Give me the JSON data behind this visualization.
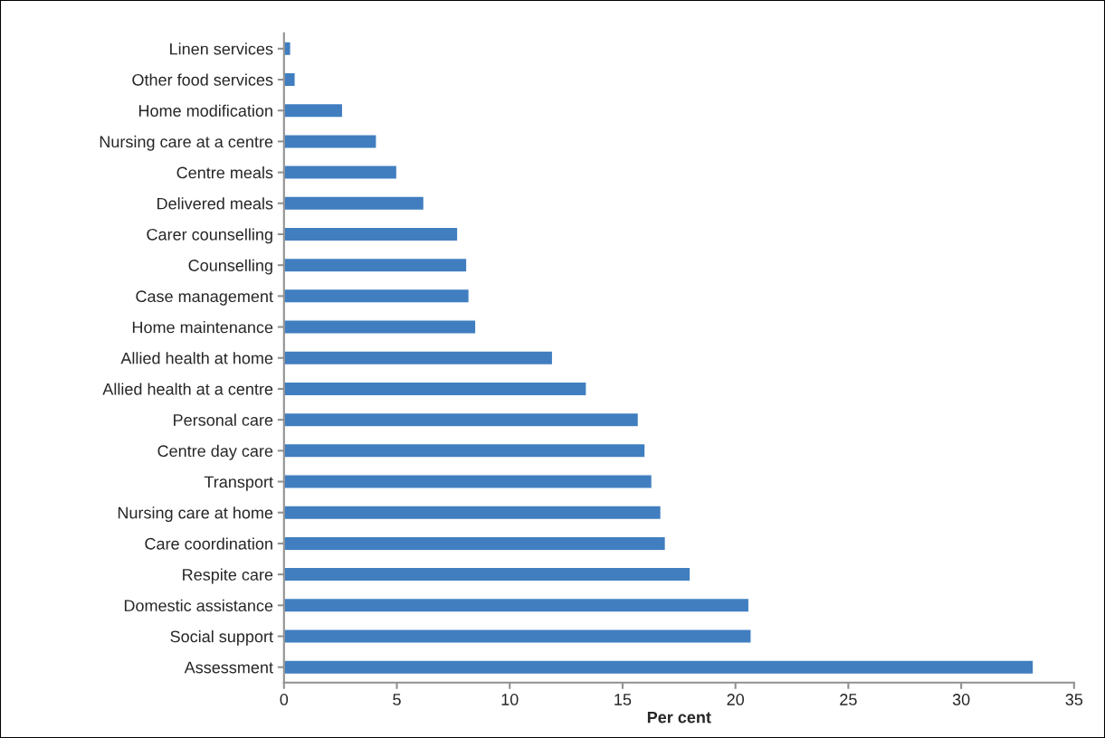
{
  "chart_data": {
    "type": "bar",
    "orientation": "horizontal",
    "xlabel": "Per cent",
    "categories": [
      "Linen services",
      "Other food services",
      "Home modification",
      "Nursing care at a centre",
      "Centre meals",
      "Delivered meals",
      "Carer counselling",
      "Counselling",
      "Case management",
      "Home maintenance",
      "Allied health at home",
      "Allied health at a centre",
      "Personal care",
      "Centre day care",
      "Transport",
      "Nursing care at home",
      "Care coordination",
      "Respite care",
      "Domestic assistance",
      "Social support",
      "Assessment"
    ],
    "values": [
      0.3,
      0.5,
      2.6,
      4.1,
      5.0,
      6.2,
      7.7,
      8.1,
      8.2,
      8.5,
      11.9,
      13.4,
      15.7,
      16.0,
      16.3,
      16.7,
      16.9,
      18.0,
      20.6,
      20.7,
      33.2
    ],
    "color": "#407ec0",
    "xlim": [
      0,
      35
    ],
    "xticks": [
      0,
      5,
      10,
      15,
      20,
      25,
      30,
      35
    ],
    "grid": false,
    "legend": false
  }
}
